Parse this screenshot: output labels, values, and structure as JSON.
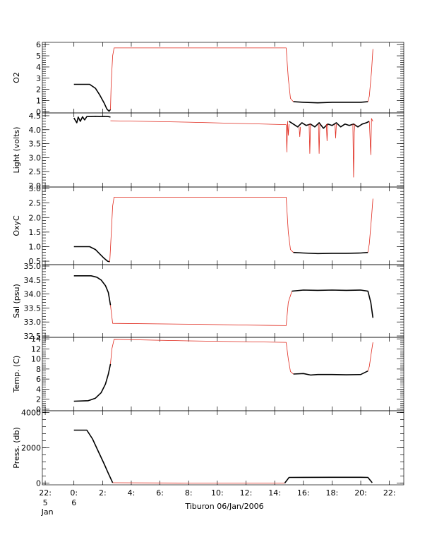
{
  "caption": "Tiburon 06/Jan/2006",
  "colors": {
    "at_depth": "#000000",
    "transit": "#ff0000"
  },
  "chart_data": {
    "type": "line",
    "x": {
      "range": [
        -2.2,
        23.0
      ],
      "tick_values": [
        -2,
        0,
        2,
        4,
        6,
        8,
        10,
        12,
        14,
        16,
        18,
        20,
        22
      ],
      "tick_labels": [
        "22:",
        "0:",
        "2:",
        "4:",
        "6:",
        "8:",
        "10:",
        "12:",
        "14:",
        "16:",
        "18:",
        "20:",
        "22:"
      ],
      "day_labels": [
        {
          "x": -2,
          "lines": [
            "5",
            "Jan"
          ]
        },
        {
          "x": 0,
          "lines": [
            "6"
          ]
        }
      ]
    },
    "panels": [
      {
        "ylabel": "O2",
        "ylim": [
          -0.1,
          6.2
        ],
        "ytick_values": [
          0,
          1,
          2,
          3,
          4,
          5,
          6
        ],
        "ytick_labels": [
          "0",
          "1",
          "2",
          "3",
          "4",
          "5",
          "6"
        ],
        "segments": [
          {
            "style": "black",
            "x": [
              0,
              1.1,
              1.5,
              1.8,
              2.1,
              2.3,
              2.45,
              2.55
            ],
            "y": [
              2.45,
              2.45,
              2.1,
              1.5,
              0.8,
              0.25,
              0.05,
              0.2
            ]
          },
          {
            "style": "red",
            "x": [
              2.55,
              2.6,
              2.7,
              2.8,
              14.8,
              14.95,
              15.1,
              15.3
            ],
            "y": [
              0.2,
              2.5,
              5.0,
              5.7,
              5.7,
              3.0,
              1.2,
              0.9
            ]
          },
          {
            "style": "black",
            "x": [
              15.3,
              16.0,
              17.0,
              18.0,
              19.0,
              20.0,
              20.5
            ],
            "y": [
              0.9,
              0.85,
              0.8,
              0.85,
              0.85,
              0.85,
              0.9
            ]
          },
          {
            "style": "red",
            "x": [
              20.5,
              20.6,
              20.75,
              20.85
            ],
            "y": [
              0.9,
              1.4,
              3.6,
              5.6
            ]
          }
        ]
      },
      {
        "ylabel": "Light (volts)",
        "ylim": [
          1.95,
          4.6
        ],
        "ytick_values": [
          2.0,
          2.5,
          3.0,
          3.5,
          4.0,
          4.5
        ],
        "ytick_labels": [
          "2.0",
          "2.5",
          "3.0",
          "3.5",
          "4.0",
          "4.5"
        ],
        "segments": [
          {
            "style": "black",
            "x": [
              0,
              0.2,
              0.3,
              0.45,
              0.6,
              0.75,
              0.9,
              1.2,
              1.5,
              1.8,
              2.1,
              2.4,
              2.55
            ],
            "y": [
              4.42,
              4.25,
              4.45,
              4.3,
              4.46,
              4.35,
              4.47,
              4.47,
              4.48,
              4.47,
              4.48,
              4.47,
              4.45
            ]
          },
          {
            "style": "red",
            "x": [
              2.55,
              8.0,
              14.8,
              14.85,
              14.9,
              14.95,
              15.0
            ],
            "y": [
              4.32,
              4.27,
              4.18,
              3.2,
              4.3,
              3.8,
              4.2
            ]
          },
          {
            "style": "black",
            "x": [
              15.0,
              15.3,
              15.6,
              15.9,
              16.2,
              16.5,
              16.8,
              17.1,
              17.4,
              17.7,
              18.0,
              18.3,
              18.6,
              18.9,
              19.2,
              19.5,
              19.8,
              20.1,
              20.4,
              20.6
            ],
            "y": [
              4.3,
              4.2,
              4.1,
              4.25,
              4.15,
              4.2,
              4.1,
              4.25,
              4.05,
              4.2,
              4.15,
              4.25,
              4.1,
              4.2,
              4.15,
              4.2,
              4.1,
              4.2,
              4.25,
              4.3
            ]
          },
          {
            "style": "red",
            "x": [
              15.7,
              15.75,
              15.8
            ],
            "y": [
              4.1,
              3.75,
              4.1
            ]
          },
          {
            "style": "red",
            "x": [
              16.4,
              16.45,
              16.5
            ],
            "y": [
              4.2,
              3.15,
              4.2
            ]
          },
          {
            "style": "red",
            "x": [
              17.05,
              17.1,
              17.15
            ],
            "y": [
              4.2,
              3.15,
              4.2
            ]
          },
          {
            "style": "red",
            "x": [
              17.6,
              17.65,
              17.7
            ],
            "y": [
              4.2,
              3.6,
              4.2
            ]
          },
          {
            "style": "red",
            "x": [
              18.2,
              18.25,
              18.3
            ],
            "y": [
              4.2,
              3.7,
              4.2
            ]
          },
          {
            "style": "red",
            "x": [
              19.45,
              19.5,
              19.55,
              19.6
            ],
            "y": [
              4.2,
              2.3,
              3.9,
              4.2
            ]
          },
          {
            "style": "red",
            "x": [
              20.6,
              20.7,
              20.75,
              20.85
            ],
            "y": [
              4.3,
              3.1,
              4.4,
              4.3
            ]
          }
        ]
      },
      {
        "ylabel": "OxyC",
        "ylim": [
          0.38,
          3.05
        ],
        "ytick_values": [
          0.5,
          1.0,
          1.5,
          2.0,
          2.5,
          3.0
        ],
        "ytick_labels": [
          "0.5",
          "1.0",
          "1.5",
          "2.0",
          "2.5",
          "3.0"
        ],
        "segments": [
          {
            "style": "black",
            "x": [
              0,
              1.1,
              1.5,
              1.8,
              2.1,
              2.35,
              2.5
            ],
            "y": [
              1.0,
              1.0,
              0.9,
              0.75,
              0.6,
              0.5,
              0.48
            ]
          },
          {
            "style": "red",
            "x": [
              2.5,
              2.6,
              2.7,
              2.8,
              14.8,
              14.95,
              15.1,
              15.3
            ],
            "y": [
              0.48,
              1.4,
              2.4,
              2.7,
              2.7,
              1.5,
              0.9,
              0.8
            ]
          },
          {
            "style": "black",
            "x": [
              15.3,
              16.0,
              17.0,
              18.0,
              19.0,
              20.0,
              20.5
            ],
            "y": [
              0.8,
              0.78,
              0.76,
              0.77,
              0.77,
              0.78,
              0.8
            ]
          },
          {
            "style": "red",
            "x": [
              20.5,
              20.6,
              20.75,
              20.85
            ],
            "y": [
              0.8,
              1.1,
              2.0,
              2.65
            ]
          }
        ]
      },
      {
        "ylabel": "Sal (psu)",
        "ylim": [
          32.45,
          35.05
        ],
        "ytick_values": [
          32.5,
          33.0,
          33.5,
          34.0,
          34.5,
          35.0
        ],
        "ytick_labels": [
          "32.5",
          "33.0",
          "33.5",
          "34.0",
          "34.5",
          "35.0"
        ],
        "segments": [
          {
            "style": "black",
            "x": [
              0,
              1.2,
              1.6,
              1.9,
              2.2,
              2.4,
              2.55
            ],
            "y": [
              34.65,
              34.65,
              34.6,
              34.5,
              34.3,
              34.05,
              33.6
            ]
          },
          {
            "style": "red",
            "x": [
              2.55,
              2.7,
              8.0,
              14.8,
              14.95,
              15.2
            ],
            "y": [
              33.6,
              32.95,
              32.92,
              32.87,
              33.7,
              34.1
            ]
          },
          {
            "style": "black",
            "x": [
              15.2,
              16.0,
              17.0,
              18.0,
              19.0,
              20.0,
              20.5,
              20.7,
              20.85
            ],
            "y": [
              34.1,
              34.14,
              34.13,
              34.14,
              34.13,
              34.14,
              34.1,
              33.7,
              33.15
            ]
          }
        ]
      },
      {
        "ylabel": "Temp. (C)",
        "ylim": [
          -0.3,
          14.3
        ],
        "ytick_values": [
          0,
          2,
          4,
          6,
          8,
          10,
          12,
          14
        ],
        "ytick_labels": [
          "0",
          "2",
          "4",
          "6",
          "8",
          "10",
          "12",
          "14"
        ],
        "segments": [
          {
            "style": "black",
            "x": [
              0,
              1.0,
              1.5,
              1.9,
              2.2,
              2.4,
              2.55
            ],
            "y": [
              1.6,
              1.7,
              2.2,
              3.3,
              5.0,
              7.0,
              9.0
            ]
          },
          {
            "style": "red",
            "x": [
              2.55,
              2.65,
              2.8,
              8.0,
              14.8,
              14.95,
              15.1,
              15.3
            ],
            "y": [
              9.0,
              12.0,
              13.9,
              13.6,
              13.3,
              10.0,
              7.5,
              7.0
            ]
          },
          {
            "style": "black",
            "x": [
              15.3,
              16.0,
              16.5,
              17.0,
              18.0,
              19.0,
              20.0,
              20.5
            ],
            "y": [
              7.0,
              7.1,
              6.8,
              6.9,
              6.9,
              6.85,
              6.9,
              7.6
            ]
          },
          {
            "style": "red",
            "x": [
              20.5,
              20.6,
              20.75,
              20.85
            ],
            "y": [
              7.6,
              8.5,
              11.5,
              13.3
            ]
          }
        ]
      },
      {
        "ylabel": "Press. (db)",
        "ylim": [
          -100,
          4100
        ],
        "ytick_values": [
          0,
          2000,
          4000
        ],
        "ytick_labels": [
          "0",
          "2000",
          "4000"
        ],
        "segments": [
          {
            "style": "black",
            "x": [
              0,
              0.9,
              1.3,
              1.7,
              2.1,
              2.4,
              2.7
            ],
            "y": [
              3000,
              3000,
              2500,
              1800,
              1100,
              550,
              20
            ]
          },
          {
            "style": "red",
            "x": [
              2.7,
              8.0,
              14.7
            ],
            "y": [
              20,
              0,
              0
            ]
          },
          {
            "style": "black",
            "x": [
              14.7,
              15.0,
              16.0,
              18.0,
              19.0,
              20.0,
              20.5,
              20.8
            ],
            "y": [
              0,
              320,
              325,
              330,
              330,
              328,
              320,
              20
            ]
          }
        ]
      }
    ]
  }
}
